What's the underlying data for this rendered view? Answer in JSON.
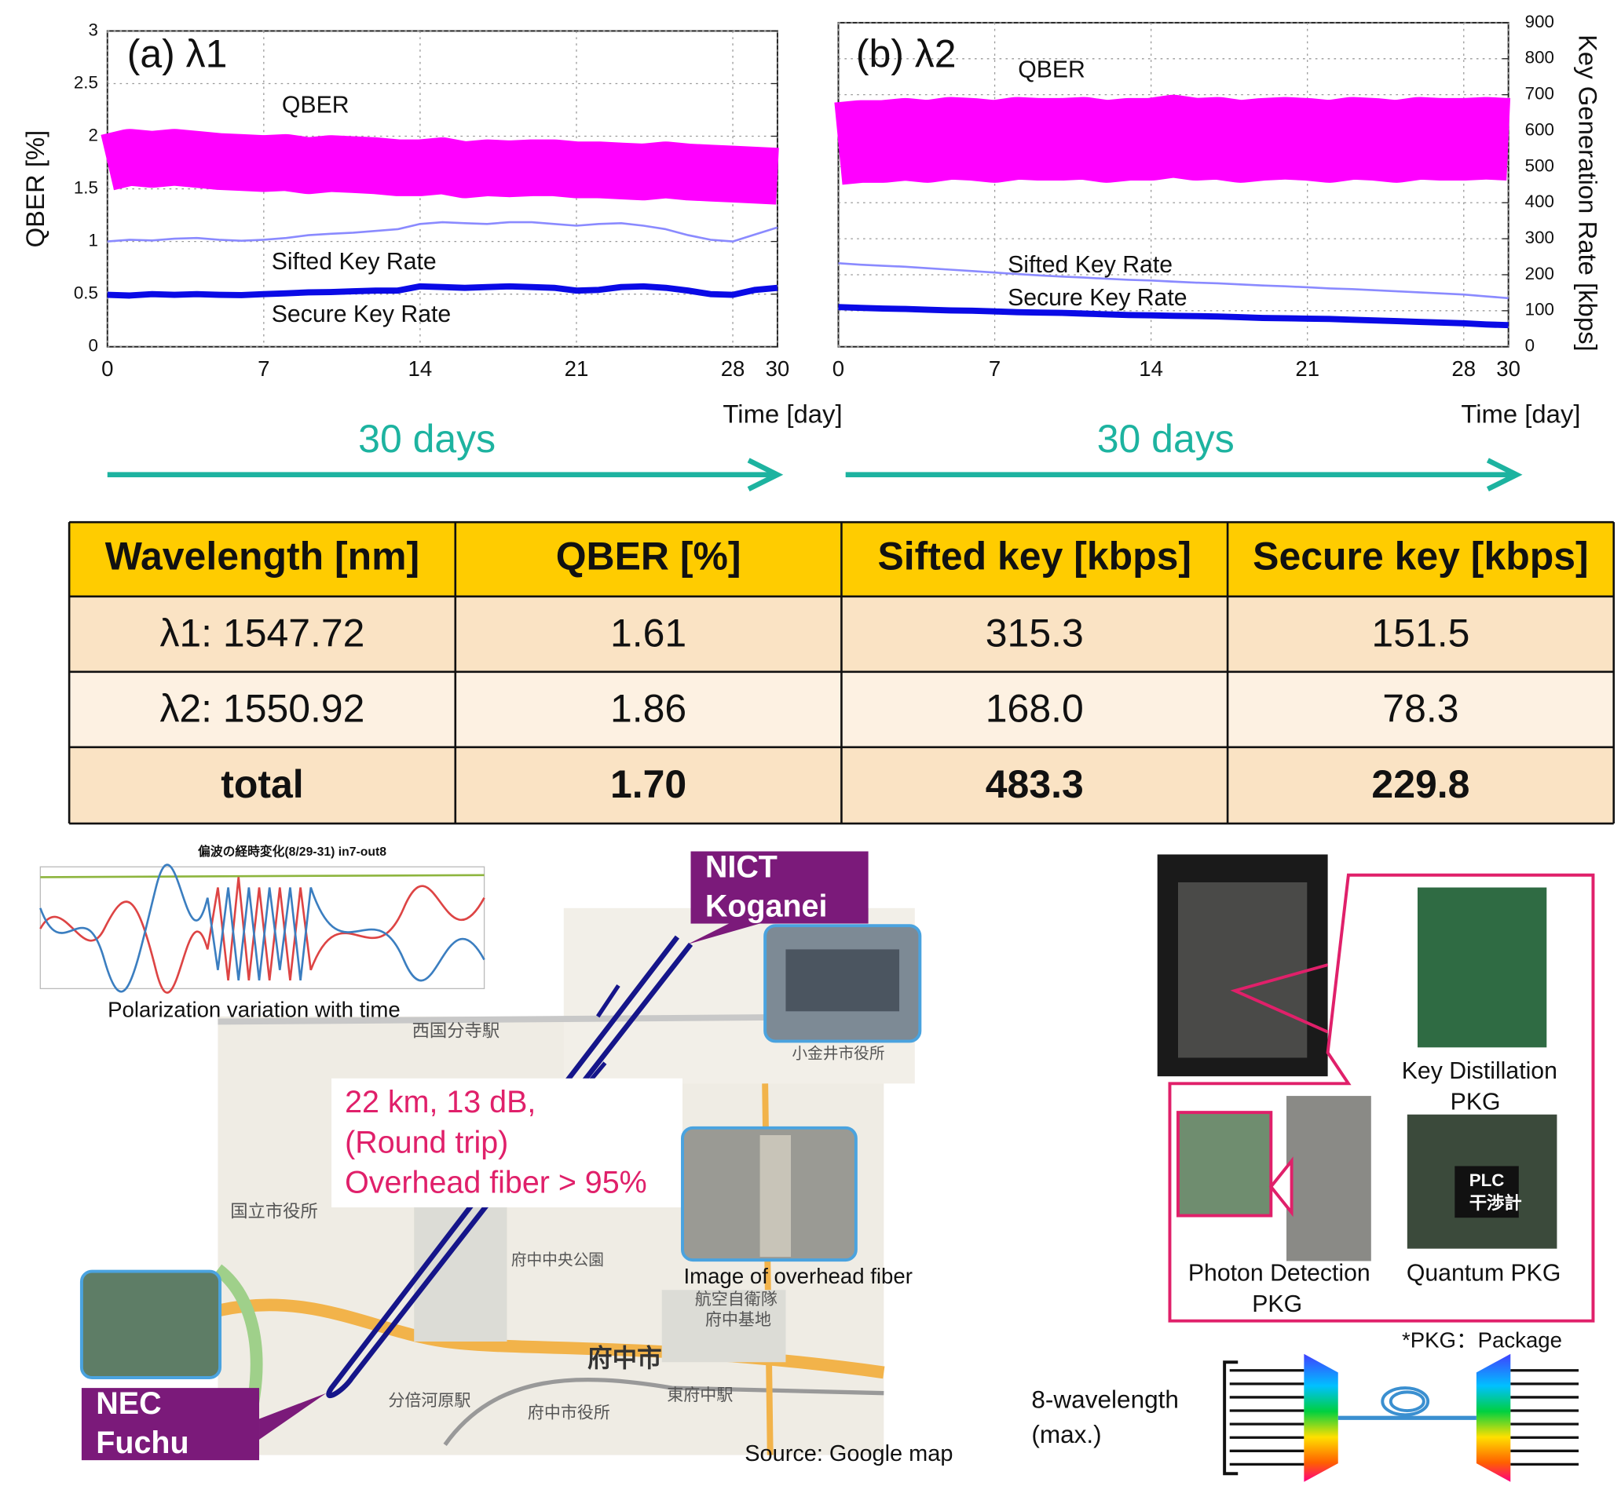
{
  "chart_data": [
    {
      "type": "line",
      "panel_label": "(a) λ1",
      "ylabel": "QBER [%]",
      "xlabel": "Time [day]",
      "span_label": "30 days",
      "annotations": [
        "QBER",
        "Sifted Key Rate",
        "Secure Key Rate"
      ],
      "x": [
        0,
        1,
        2,
        3,
        4,
        5,
        6,
        7,
        8,
        9,
        10,
        11,
        12,
        13,
        14,
        15,
        16,
        17,
        18,
        19,
        20,
        21,
        22,
        23,
        24,
        25,
        26,
        27,
        28,
        29,
        30
      ],
      "xlim": [
        0,
        30
      ],
      "xticks": [
        0,
        7,
        14,
        21,
        28,
        30
      ],
      "ylim": [
        0,
        3
      ],
      "yticks": [
        0,
        0.5,
        1,
        1.5,
        2,
        2.5,
        3
      ],
      "y2lim": [
        0,
        900
      ],
      "grid": true,
      "series": [
        {
          "name": "QBER",
          "color": "#ff00ff",
          "values": [
            1.75,
            1.8,
            1.78,
            1.8,
            1.78,
            1.76,
            1.75,
            1.74,
            1.75,
            1.72,
            1.74,
            1.73,
            1.72,
            1.7,
            1.7,
            1.72,
            1.68,
            1.7,
            1.69,
            1.7,
            1.7,
            1.68,
            1.68,
            1.67,
            1.66,
            1.68,
            1.66,
            1.65,
            1.64,
            1.63,
            1.62
          ]
        },
        {
          "name": "Sifted Key Rate",
          "color": "#8a8aff",
          "axis": "y2",
          "values": [
            300,
            305,
            303,
            308,
            310,
            305,
            302,
            305,
            310,
            318,
            322,
            325,
            330,
            335,
            350,
            355,
            352,
            350,
            355,
            355,
            350,
            345,
            350,
            352,
            345,
            335,
            318,
            305,
            300,
            320,
            340
          ]
        },
        {
          "name": "Secure Key Rate",
          "color": "#0a0ae6",
          "axis": "y2",
          "values": [
            148,
            146,
            150,
            148,
            150,
            148,
            147,
            150,
            152,
            155,
            156,
            158,
            160,
            160,
            172,
            170,
            168,
            170,
            172,
            170,
            168,
            160,
            162,
            170,
            172,
            168,
            160,
            150,
            148,
            162,
            168
          ]
        }
      ]
    },
    {
      "type": "line",
      "panel_label": "(b) λ2",
      "y2label": "Key Generation Rate [kbps]",
      "xlabel": "Time [day]",
      "span_label": "30 days",
      "annotations": [
        "QBER",
        "Sifted Key Rate",
        "Secure Key Rate"
      ],
      "x": [
        0,
        1,
        2,
        3,
        4,
        5,
        6,
        7,
        8,
        9,
        10,
        11,
        12,
        13,
        14,
        15,
        16,
        17,
        18,
        19,
        20,
        21,
        22,
        23,
        24,
        25,
        26,
        27,
        28,
        29,
        30
      ],
      "xlim": [
        0,
        30
      ],
      "xticks": [
        0,
        7,
        14,
        21,
        28,
        30
      ],
      "ylim": [
        0,
        3
      ],
      "y2lim": [
        0,
        900
      ],
      "y2ticks": [
        0,
        100,
        200,
        300,
        400,
        500,
        600,
        700,
        800,
        900
      ],
      "grid": true,
      "series": [
        {
          "name": "QBER",
          "color": "#ff00ff",
          "values": [
            1.88,
            1.9,
            1.9,
            1.92,
            1.9,
            1.93,
            1.92,
            1.9,
            1.93,
            1.92,
            1.92,
            1.93,
            1.9,
            1.92,
            1.92,
            1.95,
            1.92,
            1.93,
            1.9,
            1.92,
            1.93,
            1.92,
            1.9,
            1.93,
            1.92,
            1.9,
            1.93,
            1.92,
            1.92,
            1.93,
            1.92
          ]
        },
        {
          "name": "Sifted Key Rate",
          "color": "#8a8aff",
          "axis": "y2",
          "values": [
            232,
            228,
            225,
            222,
            218,
            214,
            210,
            206,
            202,
            198,
            195,
            192,
            189,
            186,
            184,
            181,
            178,
            176,
            173,
            170,
            168,
            165,
            162,
            160,
            157,
            154,
            151,
            148,
            145,
            140,
            135
          ]
        },
        {
          "name": "Secure Key Rate",
          "color": "#0a0ae6",
          "axis": "y2",
          "values": [
            110,
            108,
            106,
            105,
            103,
            101,
            100,
            98,
            96,
            95,
            94,
            92,
            90,
            88,
            87,
            86,
            85,
            84,
            82,
            80,
            79,
            78,
            77,
            75,
            73,
            71,
            69,
            67,
            65,
            62,
            60
          ]
        }
      ]
    }
  ],
  "table": {
    "header": [
      "Wavelength [nm]",
      "QBER [%]",
      "Sifted key [kbps]",
      "Secure key [kbps]"
    ],
    "rows": [
      [
        "λ1: 1547.72",
        "1.61",
        "315.3",
        "151.5"
      ],
      [
        "λ2: 1550.92",
        "1.86",
        "168.0",
        "78.3"
      ],
      [
        "total",
        "1.70",
        "483.3",
        "229.8"
      ]
    ]
  },
  "map": {
    "inset_title": "偏波の経時変化(8/29-31) in7-out8",
    "inset_caption": "Polarization variation with time",
    "site_a": [
      "NICT",
      "Koganei"
    ],
    "site_b": [
      "NEC",
      "Fuchu"
    ],
    "link_note": [
      "22 km, 13 dB,",
      "(Round trip)",
      "Overhead fiber > 95%"
    ],
    "photo_caption": "Image of overhead  fiber",
    "source": "Source: Google map",
    "places": [
      "西国分寺駅",
      "国立市役所",
      "府中中央公園",
      "航空自衛隊",
      "府中基地",
      "府中市",
      "分倍河原駅",
      "府中市役所",
      "東府中駅",
      "小金井市役所"
    ]
  },
  "equipment": {
    "key_distillation": [
      "Key Distillation",
      "PKG"
    ],
    "photon_detection": [
      "Photon Detection",
      "PKG"
    ],
    "quantum": "Quantum PKG",
    "plc": [
      "PLC",
      "干渉計"
    ],
    "footnote": "*PKG：Package",
    "wavelength": [
      "8-wavelength",
      "(max.)"
    ]
  }
}
